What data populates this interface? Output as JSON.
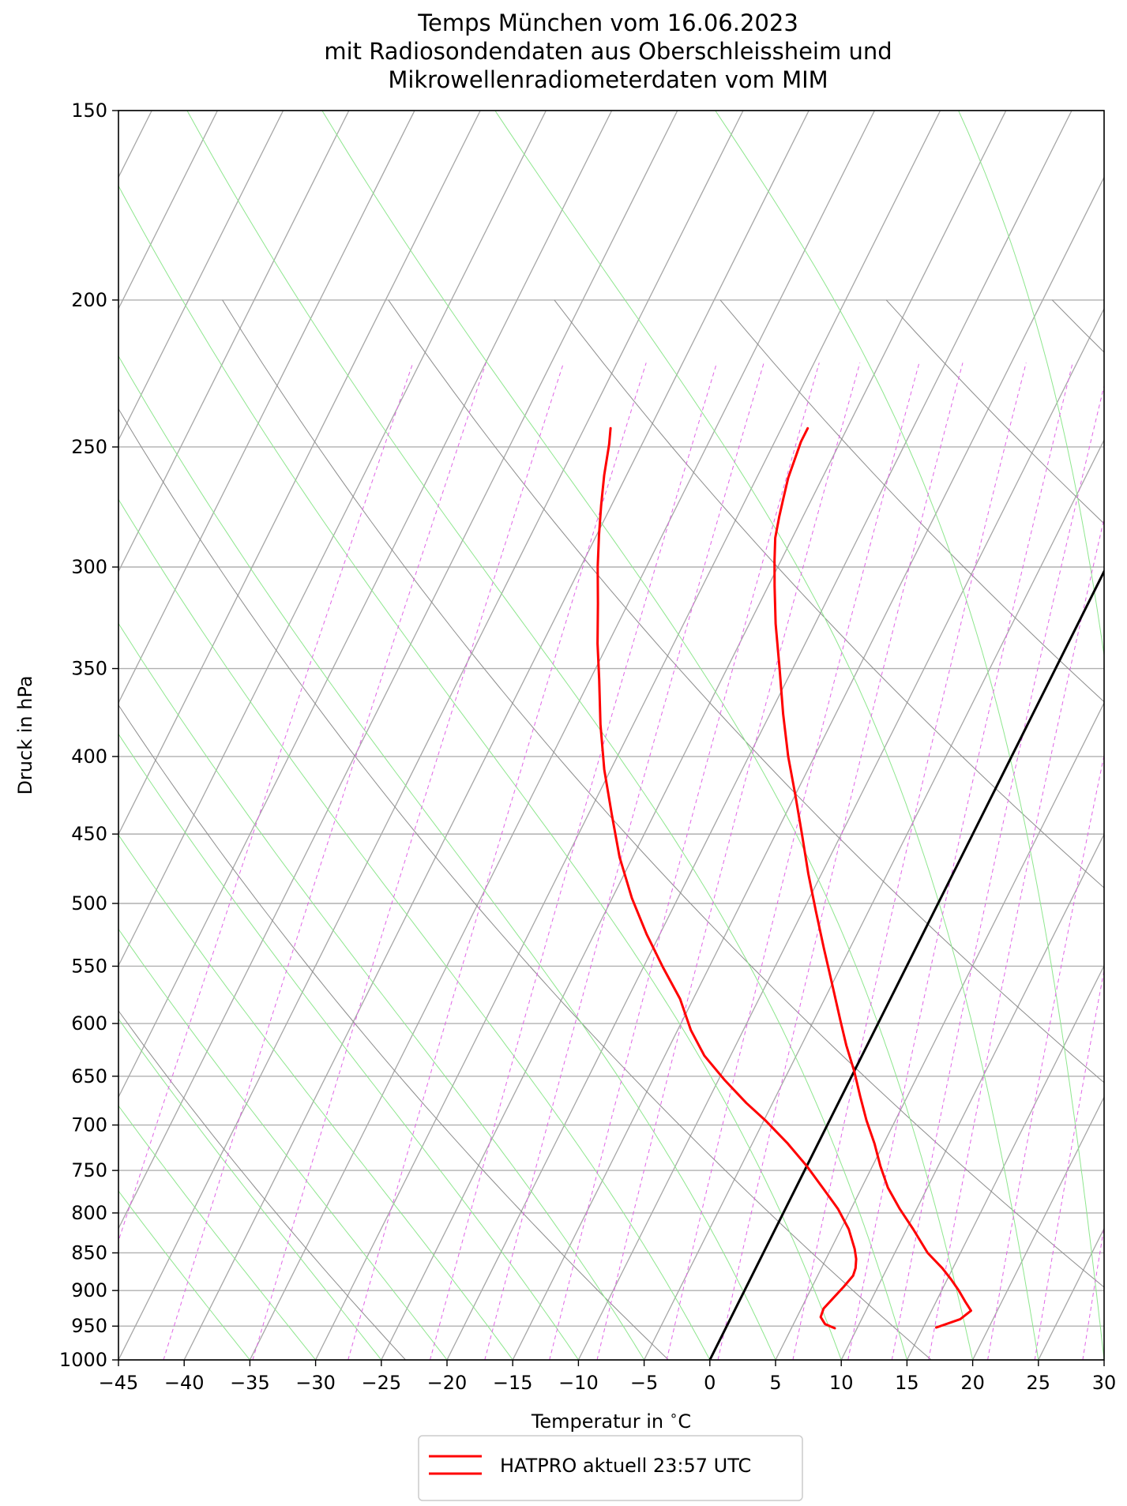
{
  "title_lines": [
    "Temps München vom 16.06.2023",
    "mit Radiosondendaten aus Oberschleissheim und",
    "Mikrowellenradiometerdaten vom MIM"
  ],
  "chart_data": {
    "type": "line",
    "diagram": "skew-T log-p",
    "xlabel": "Temperatur in $^\\circ$C",
    "xlabel_parts": [
      "Temperatur in ",
      "∘",
      "C"
    ],
    "ylabel": "Druck in hPa",
    "xlim": [
      -45,
      30
    ],
    "ylim": [
      1000,
      150
    ],
    "y_scale": "log",
    "x_ticks": [
      -45,
      -40,
      -35,
      -30,
      -25,
      -20,
      -15,
      -10,
      -5,
      0,
      5,
      10,
      15,
      20,
      25,
      30
    ],
    "x_tick_labels": [
      "−45",
      "−40",
      "−35",
      "−30",
      "−25",
      "−20",
      "−15",
      "−10",
      "−5",
      "0",
      "5",
      "10",
      "15",
      "20",
      "25",
      "30"
    ],
    "y_ticks": [
      1000,
      950,
      900,
      850,
      800,
      750,
      700,
      650,
      600,
      550,
      500,
      450,
      400,
      350,
      300,
      250,
      200,
      150
    ],
    "y_tick_labels": [
      "1000",
      "950",
      "900",
      "850",
      "800",
      "750",
      "700",
      "650",
      "600",
      "550",
      "500",
      "450",
      "400",
      "350",
      "300",
      "250",
      "200",
      "150"
    ],
    "grid": true,
    "colors": {
      "isotherms": "#a6a6a6",
      "dry_adiabats": "#8c8c8c",
      "moist_adiabats": "#8ee68e",
      "mixing_ratio": "#e066e6",
      "profile": "#ff0000",
      "zero_isotherm": "#000000"
    },
    "series": [
      {
        "name": "HATPRO aktuell 23:57 UTC",
        "style": "solid",
        "profiles": [
          {
            "points": [
              [
                16.0,
                952
              ],
              [
                17.5,
                940
              ],
              [
                18.0,
                928
              ],
              [
                17.2,
                915
              ],
              [
                16.3,
                900
              ],
              [
                15.3,
                885
              ],
              [
                14.2,
                870
              ],
              [
                12.5,
                850
              ],
              [
                10.5,
                820
              ],
              [
                8.7,
                795
              ],
              [
                7.0,
                770
              ],
              [
                5.6,
                745
              ],
              [
                4.3,
                720
              ],
              [
                2.8,
                695
              ],
              [
                1.4,
                670
              ],
              [
                0.0,
                645
              ],
              [
                -1.6,
                620
              ],
              [
                -3.0,
                597
              ],
              [
                -5.0,
                565
              ],
              [
                -7.0,
                535
              ],
              [
                -9.0,
                506
              ],
              [
                -11.0,
                478
              ],
              [
                -13.0,
                450
              ],
              [
                -15.0,
                424
              ],
              [
                -17.0,
                400
              ],
              [
                -19.0,
                375
              ],
              [
                -21.0,
                350
              ],
              [
                -23.0,
                327
              ],
              [
                -24.5,
                309
              ],
              [
                -25.5,
                297
              ],
              [
                -26.3,
                287
              ],
              [
                -26.8,
                278
              ],
              [
                -27.2,
                270
              ],
              [
                -27.6,
                262
              ],
              [
                -27.8,
                255
              ],
              [
                -28.0,
                248
              ],
              [
                -28.0,
                243
              ]
            ]
          },
          {
            "points": [
              [
                8.3,
                953
              ],
              [
                7.4,
                947
              ],
              [
                6.8,
                937
              ],
              [
                6.7,
                925
              ],
              [
                7.0,
                912
              ],
              [
                7.4,
                895
              ],
              [
                7.7,
                880
              ],
              [
                7.6,
                870
              ],
              [
                7.3,
                858
              ],
              [
                6.8,
                845
              ],
              [
                5.6,
                820
              ],
              [
                4.0,
                795
              ],
              [
                2.2,
                772
              ],
              [
                0.0,
                745
              ],
              [
                -2.3,
                720
              ],
              [
                -4.9,
                695
              ],
              [
                -7.0,
                677
              ],
              [
                -9.5,
                654
              ],
              [
                -12.0,
                630
              ],
              [
                -14.0,
                606
              ],
              [
                -16.0,
                578
              ],
              [
                -18.5,
                551
              ],
              [
                -21.0,
                524
              ],
              [
                -23.5,
                496
              ],
              [
                -26.0,
                466
              ],
              [
                -28.2,
                437
              ],
              [
                -30.5,
                408
              ],
              [
                -32.5,
                381
              ],
              [
                -34.3,
                356
              ],
              [
                -35.8,
                337
              ],
              [
                -37.3,
                317
              ],
              [
                -38.7,
                300
              ],
              [
                -39.8,
                286
              ],
              [
                -40.8,
                273
              ],
              [
                -41.7,
                261
              ],
              [
                -42.5,
                249
              ],
              [
                -43.0,
                243
              ]
            ]
          }
        ]
      }
    ],
    "legend": {
      "placement": "bottom-center",
      "entries": [
        "HATPRO aktuell 23:57 UTC"
      ]
    }
  }
}
